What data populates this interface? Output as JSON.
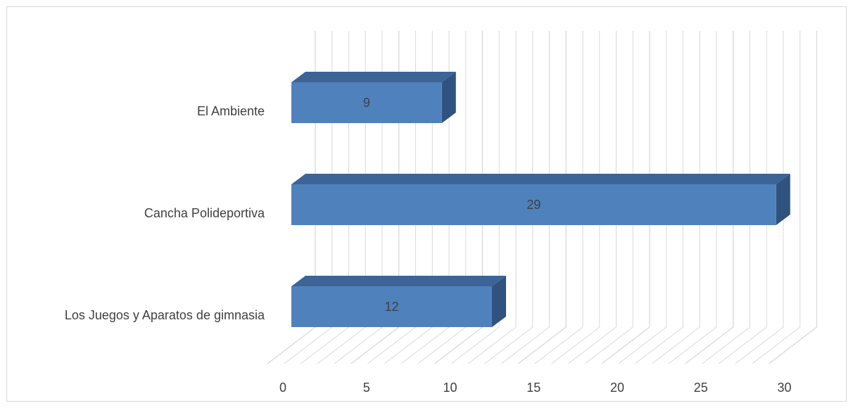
{
  "chart_data": {
    "type": "bar",
    "orientation": "horizontal",
    "style": "3d",
    "categories": [
      "El Ambiente",
      "Cancha Polideportiva",
      "Los Juegos y Aparatos de gimnasia"
    ],
    "values": [
      9,
      29,
      12
    ],
    "data_labels": [
      "9",
      "29",
      "12"
    ],
    "x_ticks": [
      "0",
      "5",
      "10",
      "15",
      "20",
      "25",
      "30"
    ],
    "xlim": [
      0,
      30
    ],
    "grid": true,
    "legend": "none",
    "colors": {
      "bar_front": "#4f81bd",
      "bar_top": "#3c6497",
      "bar_side": "#2f527f",
      "grid": "#d9d9d9",
      "text": "#404040"
    }
  }
}
